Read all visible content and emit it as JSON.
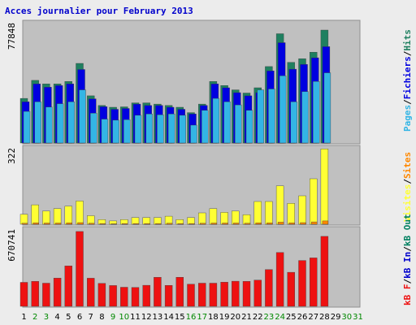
{
  "title": "Acces journalier pour February 2013",
  "colors": {
    "background": "#ececec",
    "panel": "#c0c0c0",
    "border": "#909090",
    "title": "#0000cc",
    "hits": "#1f8060",
    "files": "#0000e0",
    "pages": "#33b5e5",
    "visits": "#ffff33",
    "sites": "#ff8800",
    "kbf": "#ee1111",
    "kbin": "#0000cc",
    "kbout": "#008060",
    "weekday": "#000000",
    "weekend": "#008800"
  },
  "right_labels": {
    "top": [
      {
        "text": "Pages",
        "color": "pages"
      },
      {
        "text": "/",
        "color": "weekday"
      },
      {
        "text": "Fichiers",
        "color": "files"
      },
      {
        "text": "/",
        "color": "weekday"
      },
      {
        "text": "Hits",
        "color": "hits"
      }
    ],
    "middle": [
      {
        "text": "Visites",
        "color": "visits"
      },
      {
        "text": "/",
        "color": "weekday"
      },
      {
        "text": "Sites",
        "color": "sites"
      }
    ],
    "bottom": [
      {
        "text": "kB F",
        "color": "kbf"
      },
      {
        "text": "/",
        "color": "weekday"
      },
      {
        "text": "kB In",
        "color": "kbin"
      },
      {
        "text": "/",
        "color": "weekday"
      },
      {
        "text": "kB Out",
        "color": "kbout"
      }
    ]
  },
  "chart_data": [
    {
      "type": "bar",
      "name": "hits-files-pages",
      "ylabel": "77848",
      "ylim": [
        0,
        77848
      ],
      "categories": [
        "1",
        "2",
        "3",
        "4",
        "5",
        "6",
        "7",
        "8",
        "9",
        "10",
        "11",
        "12",
        "13",
        "14",
        "15",
        "16",
        "17",
        "18",
        "19",
        "20",
        "21",
        "22",
        "23",
        "24",
        "25",
        "26",
        "27",
        "28",
        "29",
        "30",
        "31"
      ],
      "weekend_days": [
        "2",
        "3",
        "9",
        "10",
        "16",
        "17",
        "23",
        "24",
        "30",
        "31"
      ],
      "series": [
        {
          "name": "Hits",
          "color": "hits",
          "values": [
            29500,
            41400,
            39100,
            39100,
            40700,
            52600,
            31200,
            24800,
            23600,
            23900,
            26500,
            26500,
            25700,
            24800,
            23600,
            20100,
            25700,
            40700,
            38000,
            35100,
            33000,
            36500,
            50500,
            72200,
            53300,
            55700,
            60000,
            74600,
            0,
            0,
            0
          ]
        },
        {
          "name": "Fichiers",
          "color": "files",
          "values": [
            27200,
            39100,
            36900,
            38000,
            39100,
            48600,
            29200,
            24000,
            22300,
            22800,
            25700,
            24800,
            24800,
            23600,
            22300,
            19200,
            24800,
            39100,
            36500,
            33300,
            31200,
            33300,
            47700,
            66300,
            48800,
            51900,
            56300,
            63700,
            0,
            0,
            0
          ]
        },
        {
          "name": "Pages",
          "color": "pages",
          "values": [
            20900,
            27200,
            23800,
            26000,
            27200,
            35100,
            19700,
            15800,
            15100,
            15400,
            18300,
            19200,
            18700,
            19200,
            18300,
            11800,
            21600,
            29500,
            27200,
            25200,
            21600,
            35100,
            35700,
            44400,
            27200,
            34000,
            40700,
            46400,
            0,
            0,
            0
          ]
        }
      ]
    },
    {
      "type": "bar",
      "name": "visits-sites",
      "ylabel": "322",
      "ylim": [
        0,
        322
      ],
      "categories": [
        "1",
        "2",
        "3",
        "4",
        "5",
        "6",
        "7",
        "8",
        "9",
        "10",
        "11",
        "12",
        "13",
        "14",
        "15",
        "16",
        "17",
        "18",
        "19",
        "20",
        "21",
        "22",
        "23",
        "24",
        "25",
        "26",
        "27",
        "28",
        "29",
        "30",
        "31"
      ],
      "series": [
        {
          "name": "Visites",
          "color": "visits",
          "values": [
            42,
            82,
            56,
            66,
            76,
            98,
            36,
            20,
            14,
            20,
            28,
            28,
            28,
            34,
            20,
            28,
            48,
            66,
            50,
            56,
            40,
            96,
            96,
            162,
            88,
            120,
            192,
            318,
            0,
            0,
            0
          ]
        },
        {
          "name": "Sites",
          "color": "sites",
          "values": [
            4,
            6,
            5,
            5,
            6,
            7,
            4,
            3,
            2,
            3,
            3,
            3,
            3,
            4,
            3,
            3,
            4,
            5,
            5,
            5,
            4,
            6,
            6,
            9,
            6,
            7,
            10,
            14,
            0,
            0,
            0
          ]
        }
      ]
    },
    {
      "type": "bar",
      "name": "kb-traffic",
      "ylabel": "670741",
      "ylim": [
        0,
        670741
      ],
      "categories": [
        "1",
        "2",
        "3",
        "4",
        "5",
        "6",
        "7",
        "8",
        "9",
        "10",
        "11",
        "12",
        "13",
        "14",
        "15",
        "16",
        "17",
        "18",
        "19",
        "20",
        "21",
        "22",
        "23",
        "24",
        "25",
        "26",
        "27",
        "28",
        "29",
        "30",
        "31"
      ],
      "series": [
        {
          "name": "kB F",
          "color": "kbf",
          "values": [
            208000,
            217000,
            201000,
            245000,
            351000,
            650000,
            244000,
            199000,
            181000,
            166000,
            164000,
            183000,
            252000,
            182000,
            253000,
            192000,
            201000,
            201000,
            210000,
            218000,
            217000,
            228000,
            319000,
            468000,
            296000,
            398000,
            421000,
            608000,
            0,
            0,
            0
          ]
        }
      ]
    }
  ]
}
